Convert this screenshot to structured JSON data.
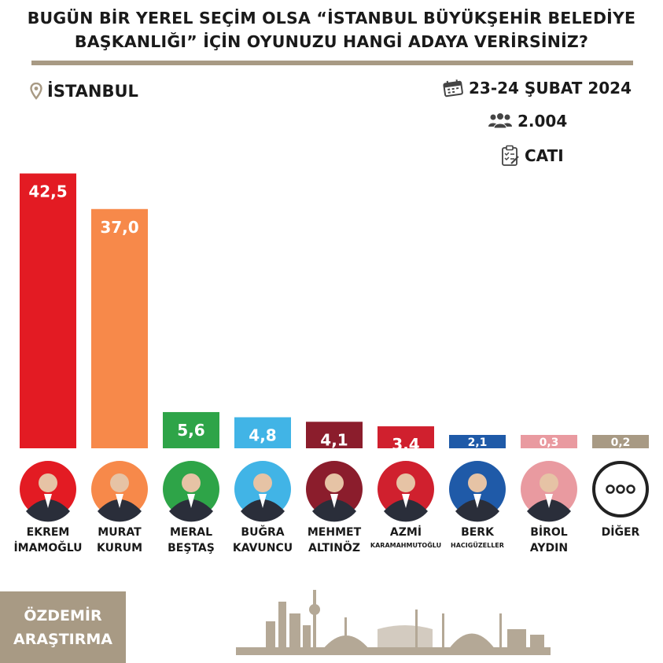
{
  "header": {
    "title_line1": "BUGÜN BİR YEREL SEÇİM OLSA “İSTANBUL BÜYÜKŞEHİR BELEDİYE",
    "title_line2": "BAŞKANLIĞI” İÇİN OYUNUZU HANGİ ADAYA VERİRSİNİZ?"
  },
  "location": {
    "icon": "location-pin-icon",
    "label": "İSTANBUL"
  },
  "meta": {
    "date": {
      "icon": "calendar-icon",
      "label": "23-24 ŞUBAT 2024"
    },
    "sample": {
      "icon": "people-icon",
      "label": "2.004"
    },
    "method": {
      "icon": "clipboard-icon",
      "label": "CATI"
    }
  },
  "chart_data": {
    "type": "bar",
    "categories": [
      "EKREM İMAMOĞLU",
      "MURAT KURUM",
      "MERAL BEŞTAŞ",
      "BUĞRA KAVUNCU",
      "MEHMET ALTINÖZ",
      "AZMİ KARAMAHMUTOĞLU",
      "BERK HACIGÜZELLER",
      "BİROL AYDIN",
      "DİĞER"
    ],
    "values": [
      42.5,
      37.0,
      5.6,
      4.8,
      4.1,
      3.4,
      2.1,
      0.3,
      0.2
    ],
    "value_labels": [
      "42,5",
      "37,0",
      "5,6",
      "4,8",
      "4,1",
      "3,4",
      "2,1",
      "0,3",
      "0,2"
    ],
    "colors": [
      "#e31b23",
      "#f7894a",
      "#2ea448",
      "#41b4e6",
      "#8b1d2c",
      "#d0202e",
      "#1f5aa8",
      "#e99aa0",
      "#a89a84"
    ],
    "label_colors": [
      "#ffffff",
      "#ffffff",
      "#ffffff",
      "#ffffff",
      "#ffffff",
      "#ffffff",
      "#ffffff",
      "#ffffff",
      "#ffffff"
    ],
    "ylim": [
      0,
      45
    ],
    "title": "",
    "xlabel": "",
    "ylabel": ""
  },
  "candidates": [
    {
      "line1": "EKREM",
      "line2": "İMAMOĞLU",
      "small": false,
      "avatar_bg": "#e31b23"
    },
    {
      "line1": "MURAT",
      "line2": "KURUM",
      "small": false,
      "avatar_bg": "#f7894a"
    },
    {
      "line1": "MERAL",
      "line2": "BEŞTAŞ",
      "small": false,
      "avatar_bg": "#2ea448"
    },
    {
      "line1": "BUĞRA",
      "line2": "KAVUNCU",
      "small": false,
      "avatar_bg": "#41b4e6"
    },
    {
      "line1": "MEHMET",
      "line2": "ALTINÖZ",
      "small": false,
      "avatar_bg": "#8b1d2c"
    },
    {
      "line1": "AZMİ",
      "line2": "KARAMAHMUTOĞLU",
      "small": true,
      "avatar_bg": "#d0202e"
    },
    {
      "line1": "BERK",
      "line2": "HACIGÜZELLER",
      "small": true,
      "avatar_bg": "#1f5aa8"
    },
    {
      "line1": "BİROL",
      "line2": "AYDIN",
      "small": false,
      "avatar_bg": "#e99aa0"
    },
    {
      "line1": "DİĞER",
      "line2": "",
      "small": false,
      "avatar_bg": "#ffffff"
    }
  ],
  "brand": {
    "line1": "ÖZDEMİR",
    "line2": "ARAŞTIRMA",
    "color": "#a89a84"
  },
  "decor": {
    "skyline_icon": "istanbul-skyline-icon"
  }
}
